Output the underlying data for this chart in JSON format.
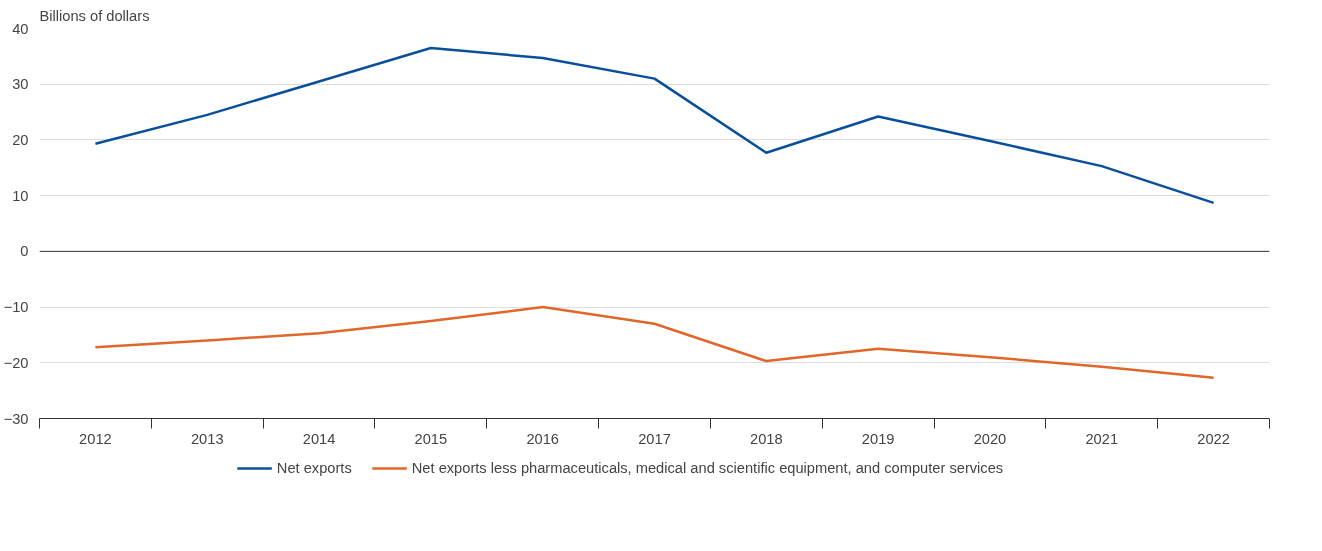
{
  "chart_data": {
    "type": "line",
    "ylabel": "Billions of dollars",
    "categories": [
      "2012",
      "2013",
      "2014",
      "2015",
      "2016",
      "2017",
      "2018",
      "2019",
      "2020",
      "2021",
      "2022"
    ],
    "series": [
      {
        "name": "Net exports",
        "color": "#0a4f9c",
        "values": [
          19.3,
          24.5,
          30.5,
          36.5,
          34.7,
          31,
          17.7,
          24.2,
          19.8,
          15.3,
          8.7
        ]
      },
      {
        "name": "Net exports less pharmaceuticals, medical and scientific equipment, and computer services",
        "color": "#e0662a",
        "values": [
          -17.2,
          -16,
          -14.7,
          -12.5,
          -10,
          -13,
          -19.7,
          -17.5,
          -19,
          -20.7,
          -22.7
        ]
      }
    ],
    "ylim": [
      -30,
      40
    ],
    "yticks": [
      {
        "value": -30,
        "label": "−30"
      },
      {
        "value": -20,
        "label": "−20"
      },
      {
        "value": -10,
        "label": "−10"
      },
      0,
      10,
      20,
      30,
      40
    ],
    "grid": "y",
    "legend": "bottom",
    "marker": "none",
    "line_style": "solid"
  }
}
